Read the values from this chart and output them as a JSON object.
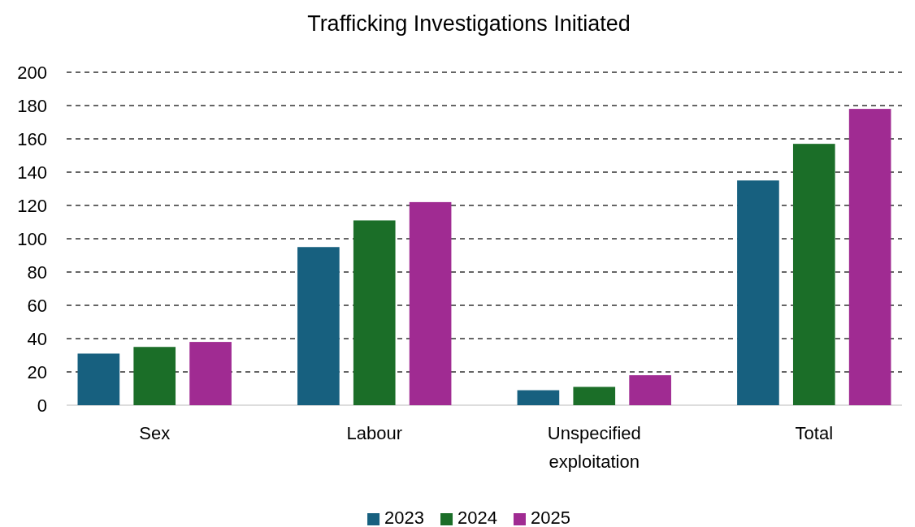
{
  "chart_data": {
    "type": "bar",
    "title": "Trafficking Investigations Initiated",
    "categories": [
      "Sex",
      "Labour",
      "Unspecified exploitation",
      "Total"
    ],
    "series": [
      {
        "name": "2023",
        "color": "#17607f",
        "values": [
          31,
          95,
          9,
          135
        ]
      },
      {
        "name": "2024",
        "color": "#1b6e28",
        "values": [
          35,
          111,
          11,
          157
        ]
      },
      {
        "name": "2025",
        "color": "#a02b92",
        "values": [
          38,
          122,
          18,
          178
        ]
      }
    ],
    "ylim": [
      0,
      200
    ],
    "yticks": [
      0,
      20,
      40,
      60,
      80,
      100,
      120,
      140,
      160,
      180,
      200
    ],
    "grid": "y",
    "line_style": "dashed",
    "legend": "bottom"
  }
}
